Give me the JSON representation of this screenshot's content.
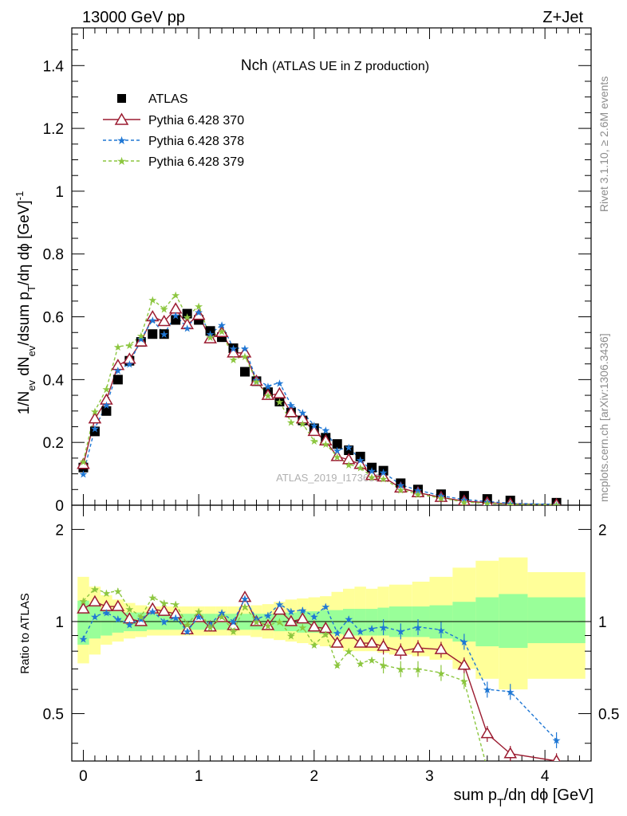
{
  "header": {
    "energy_label": "13000 GeV pp",
    "process_label": "Z+Jet",
    "title_main": "Nch",
    "title_sub": "(ATLAS UE in Z production)",
    "watermark": "ATLAS_2019_I1736531",
    "side_text_top": "Rivet 3.1.10, ≥ 2.6M events",
    "side_text_bottom": "mcplots.cern.ch [arXiv:1306.3436]"
  },
  "axes": {
    "top_ylabel": "1/N_ev dN_ev/dsum p_T/dη dϕ [GeV]^-1",
    "bottom_ylabel": "Ratio to ATLAS",
    "xlabel": "sum p_T/dη dϕ [GeV]",
    "x_ticks": [
      "0",
      "1",
      "2",
      "3",
      "4"
    ],
    "top_y_ticks": [
      "0",
      "0.2",
      "0.4",
      "0.6",
      "0.8",
      "1",
      "1.2",
      "1.4"
    ],
    "ratio_y_ticks": [
      "0.5",
      "1",
      "2"
    ]
  },
  "legend": [
    {
      "label": "ATLAS",
      "color": "#000000",
      "marker": "square"
    },
    {
      "label": "Pythia 6.428 370",
      "color": "#9b1b30",
      "marker": "open-triangle"
    },
    {
      "label": "Pythia 6.428 378",
      "color": "#1f77d4",
      "marker": "star"
    },
    {
      "label": "Pythia 6.428 379",
      "color": "#8cc63f",
      "marker": "star"
    }
  ],
  "chart_data": {
    "type": "scatter",
    "xlim": [
      -0.1,
      4.4
    ],
    "top_ylim": [
      0,
      1.52
    ],
    "ratio_ylim": [
      0.35,
      2.4
    ],
    "ratio_scale": "log",
    "x": [
      0,
      0.1,
      0.2,
      0.3,
      0.4,
      0.5,
      0.6,
      0.7,
      0.8,
      0.9,
      1.0,
      1.1,
      1.2,
      1.3,
      1.4,
      1.5,
      1.6,
      1.7,
      1.8,
      1.9,
      2.0,
      2.1,
      2.2,
      2.3,
      2.4,
      2.5,
      2.6,
      2.75,
      2.9,
      3.1,
      3.3,
      3.5,
      3.7,
      4.1
    ],
    "series": [
      {
        "name": "ATLAS",
        "values": [
          0.12,
          0.235,
          0.3,
          0.4,
          0.46,
          0.52,
          0.545,
          0.545,
          0.59,
          0.61,
          0.59,
          0.555,
          0.535,
          0.5,
          0.425,
          0.395,
          0.36,
          0.33,
          0.295,
          0.27,
          0.245,
          0.215,
          0.195,
          0.175,
          0.155,
          0.12,
          0.11,
          0.07,
          0.05,
          0.035,
          0.03,
          0.02,
          0.015,
          0.008
        ]
      },
      {
        "name": "Pythia 6.428 370",
        "values": [
          0.13,
          0.275,
          0.335,
          0.445,
          0.465,
          0.52,
          0.6,
          0.585,
          0.625,
          0.575,
          0.605,
          0.53,
          0.55,
          0.485,
          0.485,
          0.395,
          0.35,
          0.355,
          0.295,
          0.275,
          0.235,
          0.205,
          0.155,
          0.145,
          0.13,
          0.095,
          0.09,
          0.055,
          0.04,
          0.025,
          0.013,
          0.008,
          0.0045,
          0.002
        ]
      },
      {
        "name": "Pythia 6.428 378",
        "values": [
          0.1,
          0.245,
          0.32,
          0.43,
          0.45,
          0.53,
          0.59,
          0.545,
          0.605,
          0.565,
          0.615,
          0.545,
          0.575,
          0.5,
          0.5,
          0.4,
          0.38,
          0.39,
          0.32,
          0.295,
          0.255,
          0.24,
          0.175,
          0.185,
          0.145,
          0.11,
          0.105,
          0.065,
          0.048,
          0.03,
          0.018,
          0.012,
          0.006,
          0.003
        ]
      },
      {
        "name": "Pythia 6.428 379",
        "values": [
          0.14,
          0.3,
          0.37,
          0.505,
          0.51,
          0.54,
          0.655,
          0.625,
          0.67,
          0.6,
          0.635,
          0.535,
          0.555,
          0.465,
          0.475,
          0.395,
          0.35,
          0.33,
          0.265,
          0.26,
          0.205,
          0.195,
          0.155,
          0.13,
          0.12,
          0.09,
          0.085,
          0.05,
          0.035,
          0.023,
          0.01,
          0.006,
          0.003,
          0.0015
        ]
      }
    ],
    "band_x_edges": [
      -0.05,
      0.05,
      0.15,
      0.25,
      0.35,
      0.45,
      0.55,
      0.65,
      0.75,
      0.85,
      0.95,
      1.05,
      1.15,
      1.25,
      1.35,
      1.45,
      1.55,
      1.65,
      1.75,
      1.85,
      1.95,
      2.05,
      2.15,
      2.25,
      2.35,
      2.45,
      2.55,
      2.65,
      2.85,
      3.0,
      3.2,
      3.4,
      3.6,
      3.85,
      4.35
    ],
    "band_inner": [
      [
        0.84,
        1.17
      ],
      [
        0.88,
        1.12
      ],
      [
        0.9,
        1.1
      ],
      [
        0.92,
        1.08
      ],
      [
        0.93,
        1.07
      ],
      [
        0.93,
        1.07
      ],
      [
        0.94,
        1.06
      ],
      [
        0.94,
        1.06
      ],
      [
        0.94,
        1.06
      ],
      [
        0.94,
        1.06
      ],
      [
        0.94,
        1.06
      ],
      [
        0.94,
        1.06
      ],
      [
        0.94,
        1.06
      ],
      [
        0.94,
        1.06
      ],
      [
        0.94,
        1.06
      ],
      [
        0.94,
        1.06
      ],
      [
        0.94,
        1.06
      ],
      [
        0.93,
        1.07
      ],
      [
        0.93,
        1.07
      ],
      [
        0.92,
        1.08
      ],
      [
        0.92,
        1.08
      ],
      [
        0.91,
        1.09
      ],
      [
        0.91,
        1.09
      ],
      [
        0.9,
        1.1
      ],
      [
        0.9,
        1.1
      ],
      [
        0.9,
        1.1
      ],
      [
        0.9,
        1.11
      ],
      [
        0.89,
        1.12
      ],
      [
        0.89,
        1.12
      ],
      [
        0.88,
        1.13
      ],
      [
        0.86,
        1.16
      ],
      [
        0.83,
        1.2
      ],
      [
        0.82,
        1.23
      ],
      [
        0.85,
        1.2
      ]
    ],
    "band_outer": [
      [
        0.73,
        1.4
      ],
      [
        0.78,
        1.3
      ],
      [
        0.84,
        1.22
      ],
      [
        0.86,
        1.18
      ],
      [
        0.88,
        1.15
      ],
      [
        0.89,
        1.13
      ],
      [
        0.9,
        1.12
      ],
      [
        0.9,
        1.12
      ],
      [
        0.9,
        1.12
      ],
      [
        0.9,
        1.12
      ],
      [
        0.9,
        1.12
      ],
      [
        0.9,
        1.12
      ],
      [
        0.9,
        1.12
      ],
      [
        0.9,
        1.12
      ],
      [
        0.9,
        1.12
      ],
      [
        0.89,
        1.13
      ],
      [
        0.88,
        1.14
      ],
      [
        0.87,
        1.16
      ],
      [
        0.86,
        1.18
      ],
      [
        0.85,
        1.19
      ],
      [
        0.84,
        1.2
      ],
      [
        0.83,
        1.21
      ],
      [
        0.82,
        1.25
      ],
      [
        0.8,
        1.28
      ],
      [
        0.8,
        1.3
      ],
      [
        0.8,
        1.28
      ],
      [
        0.79,
        1.3
      ],
      [
        0.78,
        1.32
      ],
      [
        0.77,
        1.35
      ],
      [
        0.75,
        1.4
      ],
      [
        0.7,
        1.5
      ],
      [
        0.65,
        1.58
      ],
      [
        0.6,
        1.62
      ],
      [
        0.65,
        1.45
      ]
    ],
    "ratio_series": [
      {
        "name": "Pythia 6.428 370",
        "values": [
          1.1,
          1.16,
          1.12,
          1.12,
          1.02,
          1.0,
          1.1,
          1.08,
          1.06,
          0.94,
          1.03,
          0.96,
          1.03,
          0.97,
          1.2,
          1.0,
          0.97,
          1.09,
          1.0,
          1.02,
          0.96,
          0.95,
          0.85,
          0.91,
          0.85,
          0.85,
          0.83,
          0.8,
          0.82,
          0.81,
          0.72,
          0.43,
          0.37,
          0.35
        ]
      },
      {
        "name": "Pythia 6.428 378",
        "values": [
          0.88,
          1.04,
          1.07,
          1.02,
          0.98,
          1.02,
          1.08,
          1.0,
          1.03,
          0.93,
          1.04,
          0.98,
          1.07,
          1.0,
          1.19,
          1.02,
          1.05,
          1.14,
          1.08,
          1.09,
          1.04,
          1.12,
          0.92,
          1.02,
          0.93,
          0.95,
          0.96,
          0.93,
          0.96,
          0.94,
          0.86,
          0.6,
          0.59,
          0.41
        ]
      },
      {
        "name": "Pythia 6.428 379",
        "values": [
          1.17,
          1.28,
          1.24,
          1.26,
          1.1,
          1.04,
          1.2,
          1.15,
          1.14,
          0.98,
          1.08,
          0.96,
          1.04,
          0.93,
          1.12,
          1.0,
          0.97,
          1.0,
          0.9,
          0.96,
          0.84,
          0.91,
          0.72,
          0.8,
          0.73,
          0.75,
          0.72,
          0.7,
          0.7,
          0.68,
          0.64,
          0.33,
          0.2,
          0.19
        ]
      }
    ]
  }
}
